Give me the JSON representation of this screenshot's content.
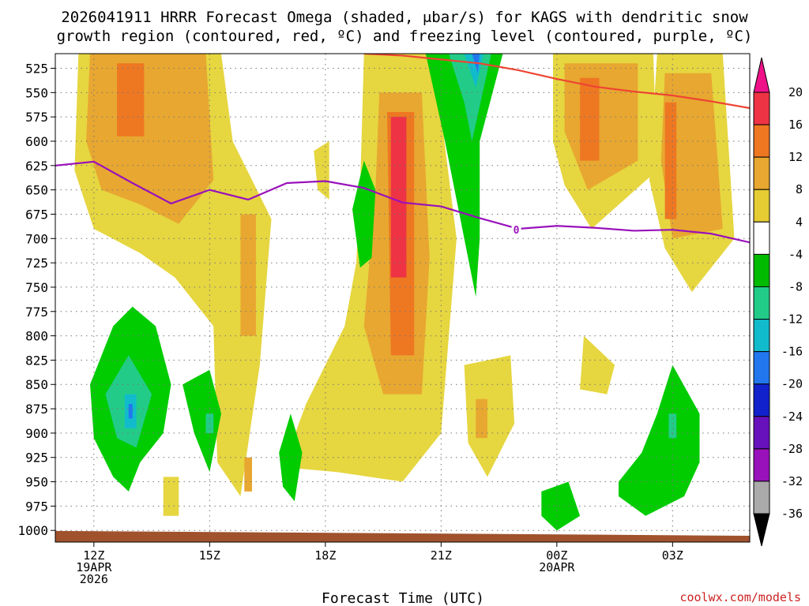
{
  "chart_data": {
    "type": "heatmap",
    "title_line1": "2026041911 HRRR Forecast Omega (shaded, μbar/s) for KAGS with dendritic snow",
    "title_line2": "growth region (contoured, red, ºC) and freezing level (contoured, purple, ºC)",
    "xlabel": "Forecast Time (UTC)",
    "credit": "coolwx.com/models",
    "y_levels": [
      "525",
      "550",
      "575",
      "600",
      "625",
      "650",
      "675",
      "700",
      "725",
      "750",
      "775",
      "800",
      "825",
      "850",
      "875",
      "900",
      "925",
      "950",
      "975",
      "1000"
    ],
    "ylim": [
      510,
      1012
    ],
    "xlim": [
      -1.0,
      17.0
    ],
    "x_ticks": [
      {
        "hour": 0,
        "lines": [
          "12Z",
          "19APR",
          "2026"
        ]
      },
      {
        "hour": 3,
        "lines": [
          "15Z"
        ]
      },
      {
        "hour": 6,
        "lines": [
          "18Z"
        ]
      },
      {
        "hour": 9,
        "lines": [
          "21Z"
        ]
      },
      {
        "hour": 12,
        "lines": [
          "00Z",
          "20APR"
        ]
      },
      {
        "hour": 15,
        "lines": [
          "03Z"
        ]
      }
    ],
    "colorbar": {
      "levels": [
        "20",
        "16",
        "12",
        "8",
        "4",
        "-4",
        "-8",
        "-12",
        "-16",
        "-20",
        "-24",
        "-28",
        "-32",
        "-36"
      ],
      "bands": [
        "#ee3344",
        "#ee7722",
        "#e8a730",
        "#e6cc33",
        "#ffffff",
        "#00bb00",
        "#22cc88",
        "#11bbcc",
        "#2277ee",
        "#1122cc",
        "#6611bb",
        "#9911bb",
        "#aaaaaa"
      ],
      "top_color": "#ee1188",
      "bottom_color": "#000000"
    },
    "omega_colors": {
      "4": "#e6d640",
      "8": "#e8a730",
      "12": "#ee7722",
      "16": "#ee3344",
      "n4": "#00cc00",
      "n8": "#22cc88",
      "n12": "#11bbcc",
      "n16": "#2277ee"
    },
    "ground_color": "#a0522d",
    "freezing_level": {
      "label": "0",
      "color": "#9911bb",
      "hours": [
        -1.0,
        0.0,
        1.0,
        2.0,
        3.0,
        4.0,
        5.0,
        6.0,
        7.0,
        8.0,
        9.0,
        10.0,
        11.0,
        12.0,
        13.0,
        14.0,
        15.0,
        16.0,
        17.0
      ],
      "pressure": [
        625,
        621,
        643,
        664,
        650,
        660,
        643,
        641,
        648,
        663,
        667,
        679,
        690,
        687,
        689,
        692,
        691,
        695,
        704
      ]
    },
    "dgz_contour": {
      "color": "#ee4433",
      "hours": [
        7.0,
        8.0,
        9.0,
        10.0,
        11.0,
        12.0,
        13.0,
        14.0,
        15.0,
        16.0,
        17.0
      ],
      "pressure": [
        510,
        512,
        516,
        520,
        527,
        536,
        544,
        549,
        553,
        559,
        566
      ]
    },
    "omega_shapes": [
      {
        "level": "4",
        "pts": [
          [
            -0.4,
            510
          ],
          [
            3.3,
            510
          ],
          [
            3.6,
            600
          ],
          [
            4.6,
            680
          ],
          [
            4.3,
            830
          ],
          [
            3.8,
            965
          ],
          [
            3.2,
            930
          ],
          [
            3.1,
            790
          ],
          [
            2.1,
            740
          ],
          [
            1.2,
            715
          ],
          [
            0.0,
            690
          ],
          [
            -0.5,
            630
          ]
        ]
      },
      {
        "level": "8",
        "pts": [
          [
            -0.1,
            510
          ],
          [
            2.9,
            510
          ],
          [
            3.1,
            640
          ],
          [
            2.2,
            685
          ],
          [
            1.2,
            665
          ],
          [
            0.2,
            650
          ],
          [
            -0.2,
            600
          ]
        ]
      },
      {
        "level": "12",
        "pts": [
          [
            0.6,
            520
          ],
          [
            1.3,
            520
          ],
          [
            1.3,
            595
          ],
          [
            0.6,
            595
          ]
        ]
      },
      {
        "level": "4",
        "pts": [
          [
            1.8,
            690
          ],
          [
            2.2,
            690
          ],
          [
            2.2,
            725
          ],
          [
            1.8,
            725
          ]
        ]
      },
      {
        "level": "8",
        "pts": [
          [
            3.8,
            675
          ],
          [
            4.2,
            675
          ],
          [
            4.2,
            800
          ],
          [
            3.8,
            800
          ]
        ]
      },
      {
        "level": "8",
        "pts": [
          [
            3.9,
            925
          ],
          [
            4.1,
            925
          ],
          [
            4.1,
            960
          ],
          [
            3.9,
            960
          ]
        ]
      },
      {
        "level": "4",
        "pts": [
          [
            5.7,
            610
          ],
          [
            6.1,
            600
          ],
          [
            6.1,
            660
          ],
          [
            5.8,
            650
          ]
        ]
      },
      {
        "level": "4",
        "pts": [
          [
            1.8,
            945
          ],
          [
            2.2,
            945
          ],
          [
            2.2,
            985
          ],
          [
            1.8,
            985
          ]
        ]
      },
      {
        "level": "4",
        "pts": [
          [
            7.0,
            510
          ],
          [
            8.8,
            510
          ],
          [
            9.4,
            700
          ],
          [
            9.0,
            900
          ],
          [
            8.0,
            950
          ],
          [
            6.3,
            940
          ],
          [
            4.9,
            935
          ],
          [
            5.5,
            870
          ],
          [
            6.5,
            790
          ],
          [
            6.8,
            725
          ],
          [
            6.9,
            650
          ]
        ]
      },
      {
        "level": "8",
        "pts": [
          [
            7.4,
            550
          ],
          [
            8.5,
            550
          ],
          [
            8.7,
            720
          ],
          [
            8.5,
            860
          ],
          [
            7.5,
            860
          ],
          [
            7.0,
            790
          ],
          [
            7.3,
            650
          ]
        ]
      },
      {
        "level": "12",
        "pts": [
          [
            7.6,
            570
          ],
          [
            8.3,
            570
          ],
          [
            8.3,
            820
          ],
          [
            7.7,
            820
          ]
        ]
      },
      {
        "level": "16",
        "pts": [
          [
            7.7,
            575
          ],
          [
            8.1,
            575
          ],
          [
            8.1,
            740
          ],
          [
            7.7,
            740
          ]
        ]
      },
      {
        "level": "4",
        "pts": [
          [
            9.6,
            830
          ],
          [
            10.8,
            820
          ],
          [
            10.9,
            890
          ],
          [
            10.2,
            945
          ],
          [
            9.7,
            910
          ]
        ]
      },
      {
        "level": "8",
        "pts": [
          [
            9.9,
            865
          ],
          [
            10.2,
            865
          ],
          [
            10.2,
            905
          ],
          [
            9.9,
            905
          ]
        ]
      },
      {
        "level": "4",
        "pts": [
          [
            11.9,
            510
          ],
          [
            14.5,
            510
          ],
          [
            14.6,
            630
          ],
          [
            12.9,
            690
          ],
          [
            12.2,
            645
          ],
          [
            11.9,
            600
          ]
        ]
      },
      {
        "level": "8",
        "pts": [
          [
            12.2,
            520
          ],
          [
            14.1,
            520
          ],
          [
            14.1,
            620
          ],
          [
            12.8,
            650
          ],
          [
            12.2,
            590
          ]
        ]
      },
      {
        "level": "12",
        "pts": [
          [
            12.6,
            535
          ],
          [
            13.1,
            535
          ],
          [
            13.1,
            620
          ],
          [
            12.6,
            620
          ]
        ]
      },
      {
        "level": "4",
        "pts": [
          [
            14.6,
            510
          ],
          [
            16.3,
            510
          ],
          [
            16.6,
            700
          ],
          [
            15.5,
            755
          ],
          [
            14.8,
            710
          ],
          [
            14.4,
            640
          ]
        ]
      },
      {
        "level": "8",
        "pts": [
          [
            14.8,
            530
          ],
          [
            16.0,
            530
          ],
          [
            16.3,
            690
          ],
          [
            15.0,
            700
          ],
          [
            14.7,
            620
          ]
        ]
      },
      {
        "level": "12",
        "pts": [
          [
            14.8,
            560
          ],
          [
            15.1,
            560
          ],
          [
            15.1,
            680
          ],
          [
            14.8,
            680
          ]
        ]
      },
      {
        "level": "4",
        "pts": [
          [
            12.7,
            800
          ],
          [
            13.5,
            830
          ],
          [
            13.3,
            860
          ],
          [
            12.6,
            855
          ]
        ]
      },
      {
        "level": "n4",
        "pts": [
          [
            -0.1,
            850
          ],
          [
            0.5,
            790
          ],
          [
            1.0,
            770
          ],
          [
            1.6,
            790
          ],
          [
            2.0,
            850
          ],
          [
            1.8,
            900
          ],
          [
            1.2,
            930
          ],
          [
            0.9,
            960
          ],
          [
            0.5,
            945
          ],
          [
            0.0,
            905
          ]
        ]
      },
      {
        "level": "n8",
        "pts": [
          [
            0.3,
            860
          ],
          [
            0.9,
            820
          ],
          [
            1.5,
            860
          ],
          [
            1.1,
            915
          ],
          [
            0.6,
            905
          ]
        ]
      },
      {
        "level": "n12",
        "pts": [
          [
            0.8,
            860
          ],
          [
            1.1,
            860
          ],
          [
            1.1,
            895
          ],
          [
            0.8,
            895
          ]
        ]
      },
      {
        "level": "n16",
        "pts": [
          [
            0.9,
            870
          ],
          [
            1.0,
            870
          ],
          [
            1.0,
            885
          ],
          [
            0.9,
            885
          ]
        ]
      },
      {
        "level": "n4",
        "pts": [
          [
            2.3,
            850
          ],
          [
            3.0,
            835
          ],
          [
            3.3,
            880
          ],
          [
            3.0,
            940
          ],
          [
            2.6,
            900
          ]
        ]
      },
      {
        "level": "n8",
        "pts": [
          [
            2.9,
            880
          ],
          [
            3.1,
            880
          ],
          [
            3.1,
            900
          ],
          [
            2.9,
            900
          ]
        ]
      },
      {
        "level": "n4",
        "pts": [
          [
            4.8,
            920
          ],
          [
            5.1,
            880
          ],
          [
            5.4,
            920
          ],
          [
            5.2,
            970
          ],
          [
            4.9,
            955
          ]
        ]
      },
      {
        "level": "n4",
        "pts": [
          [
            7.0,
            620
          ],
          [
            7.3,
            650
          ],
          [
            7.2,
            720
          ],
          [
            6.9,
            730
          ],
          [
            6.7,
            670
          ]
        ]
      },
      {
        "level": "n4",
        "pts": [
          [
            8.6,
            510
          ],
          [
            10.6,
            510
          ],
          [
            10.0,
            600
          ],
          [
            10.0,
            700
          ],
          [
            9.9,
            760
          ],
          [
            9.6,
            700
          ],
          [
            9.1,
            600
          ]
        ]
      },
      {
        "level": "n8",
        "pts": [
          [
            9.2,
            510
          ],
          [
            10.3,
            510
          ],
          [
            9.8,
            600
          ],
          [
            9.6,
            560
          ]
        ]
      },
      {
        "level": "n12",
        "pts": [
          [
            9.6,
            510
          ],
          [
            10.1,
            510
          ],
          [
            9.9,
            545
          ]
        ]
      },
      {
        "level": "n16",
        "pts": [
          [
            9.8,
            510
          ],
          [
            10.0,
            510
          ],
          [
            9.95,
            530
          ]
        ]
      },
      {
        "level": "n4",
        "pts": [
          [
            11.6,
            960
          ],
          [
            12.3,
            950
          ],
          [
            12.6,
            985
          ],
          [
            12.0,
            1000
          ],
          [
            11.6,
            985
          ]
        ]
      },
      {
        "level": "n4",
        "pts": [
          [
            13.6,
            950
          ],
          [
            14.2,
            920
          ],
          [
            14.6,
            880
          ],
          [
            15.0,
            830
          ],
          [
            15.7,
            880
          ],
          [
            15.7,
            930
          ],
          [
            15.3,
            965
          ],
          [
            14.3,
            985
          ],
          [
            13.6,
            965
          ]
        ]
      },
      {
        "level": "n8",
        "pts": [
          [
            14.9,
            880
          ],
          [
            15.1,
            880
          ],
          [
            15.1,
            905
          ],
          [
            14.9,
            905
          ]
        ]
      }
    ]
  }
}
